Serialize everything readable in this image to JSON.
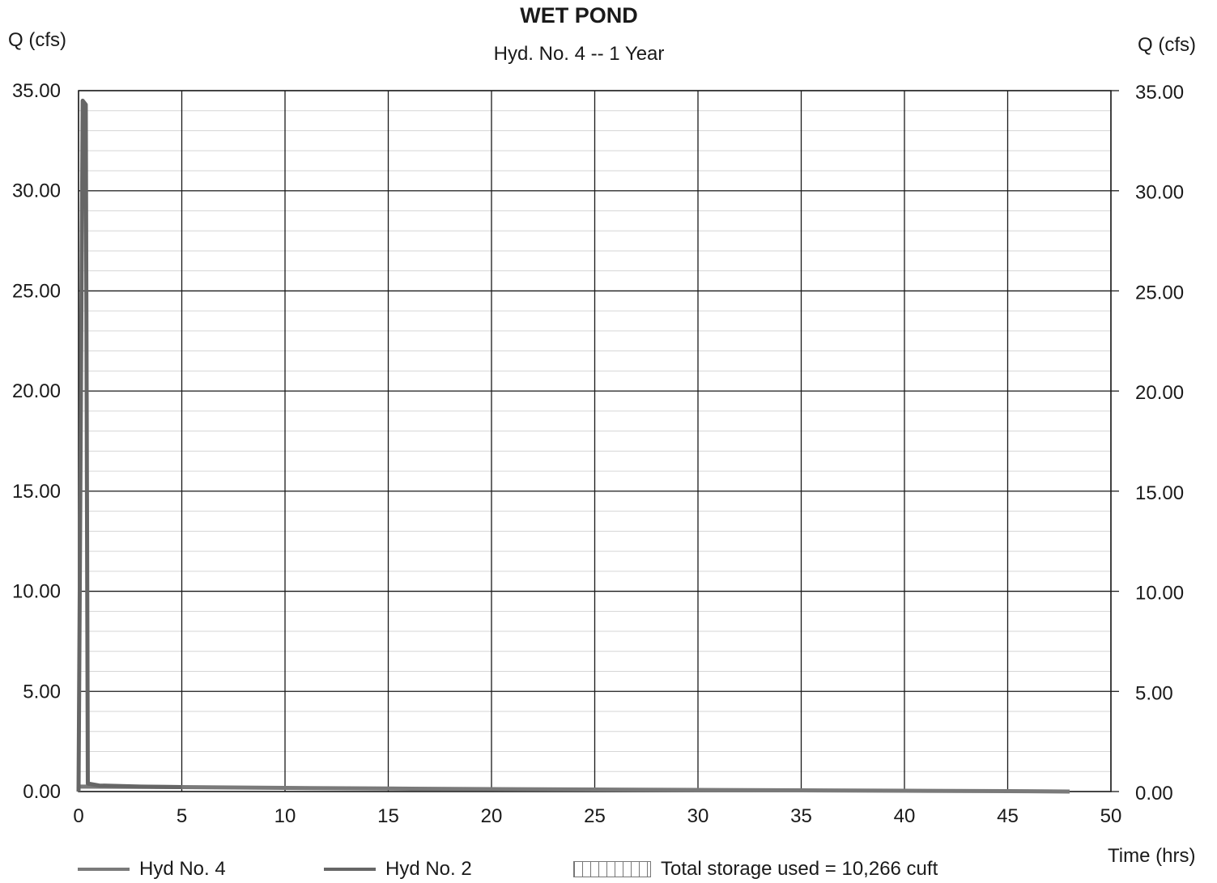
{
  "chart_data": {
    "type": "line",
    "title": "WET POND",
    "subtitle": "Hyd. No. 4 -- 1 Year",
    "ylabel_left": "Q (cfs)",
    "ylabel_right": "Q (cfs)",
    "xlabel": "Time (hrs)",
    "xlim": [
      0,
      50
    ],
    "ylim": [
      0,
      35
    ],
    "x_ticks": [
      "0",
      "5",
      "10",
      "15",
      "20",
      "25",
      "30",
      "35",
      "40",
      "45",
      "50"
    ],
    "y_ticks": [
      "0.00",
      "5.00",
      "10.00",
      "15.00",
      "20.00",
      "25.00",
      "30.00",
      "35.00"
    ],
    "grid": true,
    "minor_y_gridlines": true,
    "legend_position": "bottom",
    "series": [
      {
        "name": "Hyd No. 4",
        "color": "#7a7a7a",
        "x": [
          0,
          5,
          10,
          15,
          20,
          25,
          30,
          35,
          40,
          45,
          48
        ],
        "y": [
          0.25,
          0.22,
          0.18,
          0.15,
          0.12,
          0.1,
          0.08,
          0.06,
          0.04,
          0.02,
          0.0
        ]
      },
      {
        "name": "Hyd No. 2",
        "color": "#666666",
        "x": [
          0,
          0.2,
          0.35,
          0.45,
          1.0,
          3.0,
          5.0
        ],
        "y": [
          0.0,
          34.5,
          34.3,
          0.4,
          0.3,
          0.25,
          0.22
        ]
      }
    ],
    "annotation": "Total storage used = 10,266 cuft"
  }
}
